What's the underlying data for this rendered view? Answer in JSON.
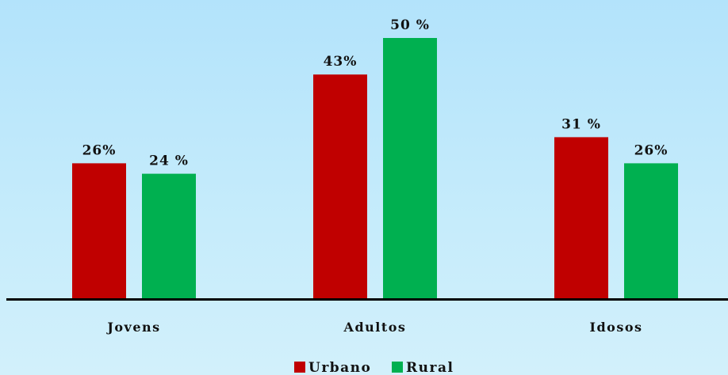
{
  "chart_data": {
    "type": "bar",
    "categories": [
      "Jovens",
      "Adultos",
      "Idosos"
    ],
    "series": [
      {
        "name": "Urbano",
        "color": "#c00000",
        "values": [
          26,
          43,
          31
        ],
        "labels": [
          "26%",
          "43%",
          "31 %"
        ]
      },
      {
        "name": "Rural",
        "color": "#00b050",
        "values": [
          24,
          50,
          26
        ],
        "labels": [
          "24 %",
          "50 %",
          "26%"
        ]
      }
    ],
    "title": "",
    "xlabel": "",
    "ylabel": "",
    "ylim": [
      0,
      50
    ],
    "grid": false,
    "legend": "bottom-center"
  }
}
